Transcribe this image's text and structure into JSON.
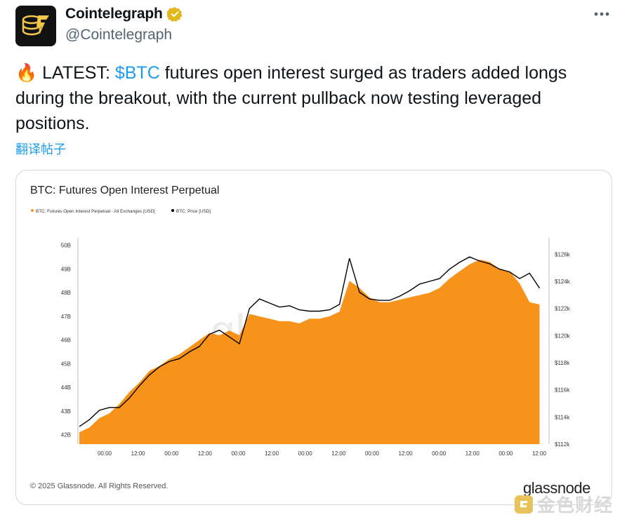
{
  "account": {
    "display_name": "Cointelegraph",
    "handle": "@Cointelegraph",
    "verified_icon": "verified-badge-icon",
    "avatar_icon": "cointelegraph-logo-icon"
  },
  "tweet": {
    "emoji": "🔥",
    "prefix": "LATEST: ",
    "cashtag": "$BTC",
    "body": " futures open interest surged as traders added longs during the breakout, with the current pullback now testing leveraged positions.",
    "translate_label": "翻译帖子"
  },
  "card": {
    "footer": "© 2025 Glassnode. All Rights Reserved.",
    "logo": "glassnode",
    "watermark": "glassnode"
  },
  "overlay_badge": {
    "text": "金色财经"
  },
  "colors": {
    "accent": "#1d9bf0",
    "oi_fill": "#f7931a",
    "price_line": "#000000"
  },
  "chart_data": {
    "type": "area",
    "title": "BTC: Futures Open Interest Perpetual",
    "legend": [
      {
        "name": "BTC: Futures Open Interest Perpetual - All Exchanges [USD]",
        "color": "#f7931a"
      },
      {
        "name": "BTC: Price [USD]",
        "color": "#000000"
      }
    ],
    "x_ticks": [
      "00:00",
      "12:00",
      "00:00",
      "12:00",
      "00:00",
      "12:00",
      "00:00",
      "12:00",
      "00:00",
      "12:00",
      "00:00",
      "12:00",
      "00:00",
      "12:00"
    ],
    "left_axis": {
      "ticks": [
        "50B",
        "49B",
        "48B",
        "47B",
        "46B",
        "45B",
        "44B",
        "43B",
        "42B"
      ],
      "range": [
        41.6,
        50.2
      ]
    },
    "right_axis": {
      "ticks": [
        "$126k",
        "$124k",
        "$122k",
        "$120k",
        "$118k",
        "$116k",
        "$114k",
        "$112k"
      ],
      "range": [
        112000,
        127000
      ]
    },
    "x_range": [
      0,
      14
    ],
    "series": [
      {
        "name": "BTC: Futures Open Interest Perpetual - All Exchanges [USD]",
        "axis": "left",
        "x": [
          0,
          0.3,
          0.6,
          0.9,
          1.2,
          1.5,
          1.8,
          2.1,
          2.4,
          2.7,
          3.0,
          3.3,
          3.6,
          3.9,
          4.2,
          4.5,
          4.8,
          5.1,
          5.4,
          5.7,
          6.0,
          6.3,
          6.6,
          6.9,
          7.2,
          7.5,
          7.8,
          8.1,
          8.4,
          8.7,
          9.0,
          9.3,
          9.6,
          9.9,
          10.2,
          10.5,
          10.8,
          11.1,
          11.4,
          11.7,
          12.0,
          12.3,
          12.6,
          12.9,
          13.2,
          13.5,
          13.8
        ],
        "values": [
          42.1,
          42.3,
          42.7,
          42.9,
          43.3,
          43.8,
          44.2,
          44.7,
          44.9,
          45.2,
          45.4,
          45.7,
          46.0,
          46.3,
          46.2,
          46.4,
          46.2,
          47.1,
          47.0,
          46.9,
          46.8,
          46.8,
          46.7,
          46.9,
          46.9,
          47.0,
          47.2,
          48.5,
          48.2,
          47.8,
          47.6,
          47.6,
          47.7,
          47.8,
          47.9,
          48.0,
          48.2,
          48.6,
          48.9,
          49.2,
          49.4,
          49.3,
          49.0,
          48.9,
          48.4,
          47.6,
          47.5
        ]
      },
      {
        "name": "BTC: Price [USD]",
        "axis": "right",
        "x": [
          0,
          0.3,
          0.6,
          0.9,
          1.2,
          1.5,
          1.8,
          2.1,
          2.4,
          2.7,
          3.0,
          3.3,
          3.6,
          3.9,
          4.2,
          4.5,
          4.8,
          5.1,
          5.4,
          5.7,
          6.0,
          6.3,
          6.6,
          6.9,
          7.2,
          7.5,
          7.8,
          8.1,
          8.4,
          8.7,
          9.0,
          9.3,
          9.6,
          9.9,
          10.2,
          10.5,
          10.8,
          11.1,
          11.4,
          11.7,
          12.0,
          12.3,
          12.6,
          12.9,
          13.2,
          13.5,
          13.8
        ],
        "values": [
          113300,
          113800,
          114500,
          114700,
          114700,
          115400,
          116300,
          117100,
          117700,
          118100,
          118300,
          118800,
          119200,
          120100,
          120400,
          119900,
          119400,
          122000,
          122700,
          122400,
          122100,
          122200,
          121900,
          121800,
          121800,
          121900,
          122300,
          125700,
          123200,
          122700,
          122600,
          122600,
          122900,
          123300,
          123800,
          124000,
          124200,
          124900,
          125400,
          125800,
          125500,
          125300,
          124900,
          124700,
          124200,
          124600,
          123500
        ]
      }
    ],
    "grid": false
  }
}
